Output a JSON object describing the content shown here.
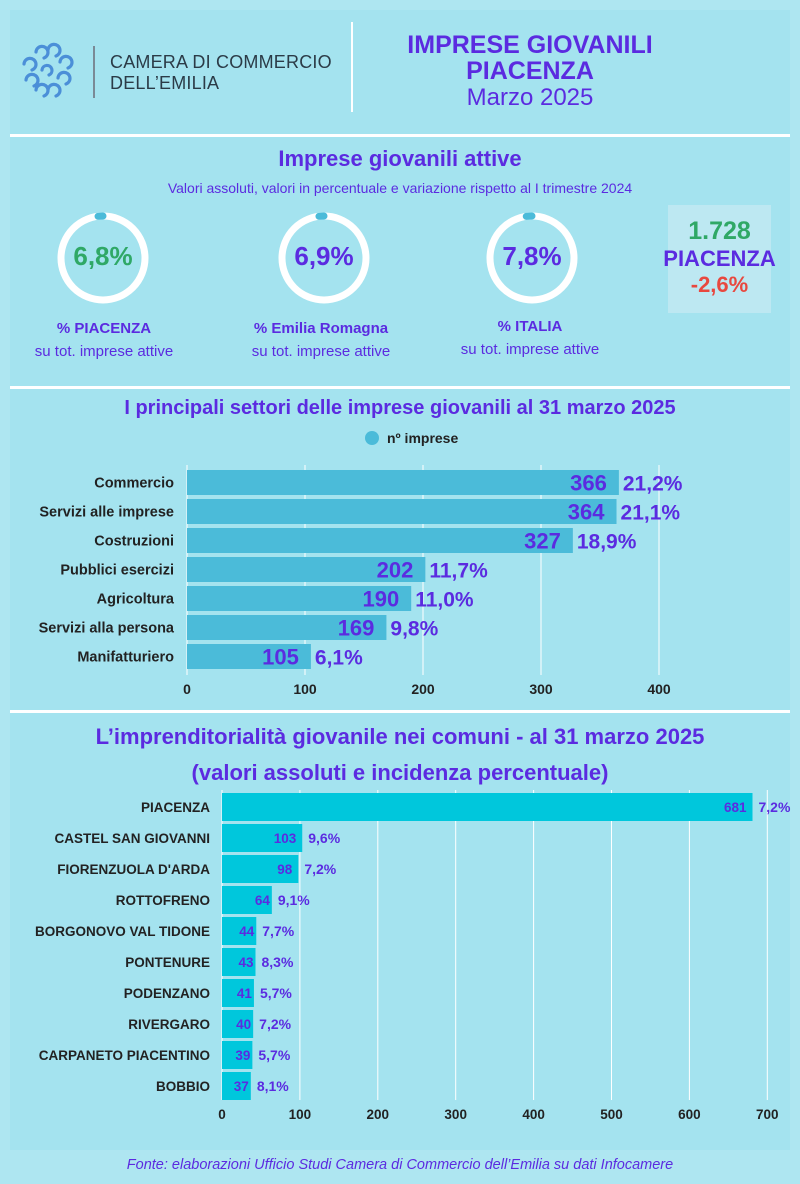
{
  "header": {
    "org_line1": "CAMERA DI COMMERCIO",
    "org_line2": "DELL’EMILIA",
    "title_line1": "IMPRESE GIOVANILI",
    "title_line2": "PIACENZA",
    "title_line3": "Marzo 2025",
    "logo_icon": "chamber-of-commerce-logo-icon"
  },
  "kpi": {
    "title": "Imprese giovanili attive",
    "subtitle": "Valori assoluti, valori in percentuale e variazione rispetto al I trimestre 2024",
    "gauges": [
      {
        "value": "6,8%",
        "pct": 6.8,
        "label_bold": "%  PIACENZA",
        "label_sub": "su tot. imprese attive",
        "color": "#2fa866"
      },
      {
        "value": "6,9%",
        "pct": 6.9,
        "label_bold": "%  Emilia Romagna",
        "label_sub": "su tot. imprese attive",
        "color": "#5b2be0"
      },
      {
        "value": "7,8%",
        "pct": 7.8,
        "label_bold": "%  ITALIA",
        "label_sub": "su tot. imprese attive",
        "color": "#5b2be0"
      }
    ],
    "total": {
      "number": "1.728",
      "place": "PIACENZA",
      "variation": "-2,6%"
    }
  },
  "colors": {
    "title": "#5b2be0",
    "bar_sectors": "#4bbbd9",
    "bar_comuni": "#00c7dc",
    "gauge_track": "#ffffff",
    "gauge_arc": "#4bbbd9",
    "positive": "#2fa866",
    "negative": "#e8483f"
  },
  "chart_data": [
    {
      "type": "bar",
      "orientation": "horizontal",
      "title": "I principali settori  delle imprese giovanili  al 31 marzo  2025",
      "legend": "nº imprese",
      "legend_position": "top-center",
      "categories": [
        "Commercio",
        "Servizi alle imprese",
        "Costruzioni",
        "Pubblici esercizi",
        "Agricoltura",
        "Servizi alla persona",
        "Manifatturiero"
      ],
      "values": [
        366,
        364,
        327,
        202,
        190,
        169,
        105
      ],
      "percent_labels": [
        "21,2%",
        "21,1%",
        "18,9%",
        "11,7%",
        "11,0%",
        "9,8%",
        "6,1%"
      ],
      "xlim": [
        0,
        400
      ],
      "xticks": [
        0,
        100,
        200,
        300,
        400
      ],
      "grid": true
    },
    {
      "type": "bar",
      "orientation": "horizontal",
      "title": "L’imprenditorialità giovanile nei comuni  - al 31 marzo 2025",
      "subtitle": "(valori assoluti e incidenza percentuale)",
      "categories": [
        "PIACENZA",
        "CASTEL SAN GIOVANNI",
        "FIORENZUOLA D'ARDA",
        "ROTTOFRENO",
        "BORGONOVO VAL TIDONE",
        "PONTENURE",
        "PODENZANO",
        "RIVERGARO",
        "CARPANETO PIACENTINO",
        "BOBBIO"
      ],
      "values": [
        681,
        103,
        98,
        64,
        44,
        43,
        41,
        40,
        39,
        37
      ],
      "percent_labels": [
        "7,2%",
        "9,6%",
        "7,2%",
        "9,1%",
        "7,7%",
        "8,3%",
        "5,7%",
        "7,2%",
        "5,7%",
        "8,1%"
      ],
      "xlim": [
        0,
        700
      ],
      "xticks": [
        0,
        100,
        200,
        300,
        400,
        500,
        600,
        700
      ],
      "grid": true
    }
  ],
  "footer": "Fonte: elaborazioni Ufficio Studi Camera di Commercio dell’Emilia su dati Infocamere"
}
